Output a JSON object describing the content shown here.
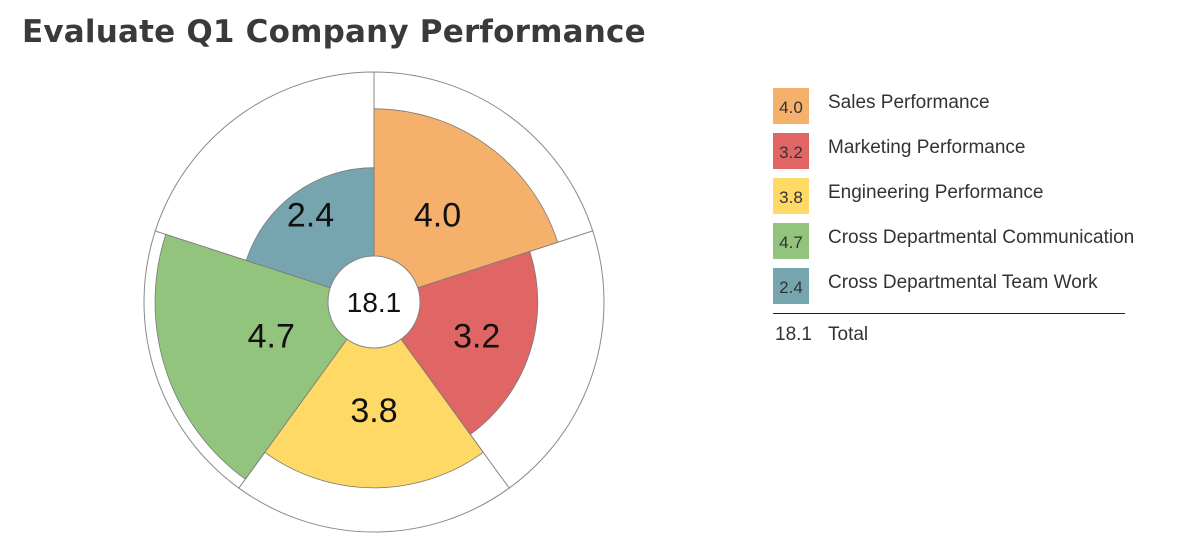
{
  "title": "Evaluate Q1 Company Performance",
  "chart_data": {
    "type": "polar-area",
    "title": "Evaluate Q1 Company Performance",
    "max_value": 5,
    "total": "18.1",
    "total_label": "Total",
    "categories": [
      "Sales Performance",
      "Marketing Performance",
      "Engineering Performance",
      "Cross Departmental Communication",
      "Cross Departmental Team Work"
    ],
    "values": [
      4.0,
      3.2,
      3.8,
      4.7,
      2.4
    ],
    "labels": [
      "4.0",
      "3.2",
      "3.8",
      "4.7",
      "2.4"
    ],
    "colors": [
      "#f5b06b",
      "#e06666",
      "#ffd966",
      "#93c47d",
      "#76a5af"
    ]
  }
}
